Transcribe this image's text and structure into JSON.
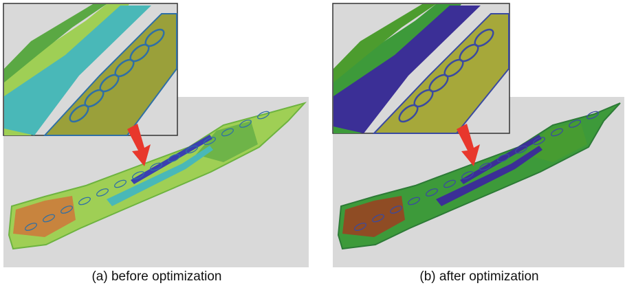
{
  "panels": [
    {
      "caption": "(a) before optimization"
    },
    {
      "caption": "(b) after optimization"
    }
  ]
}
